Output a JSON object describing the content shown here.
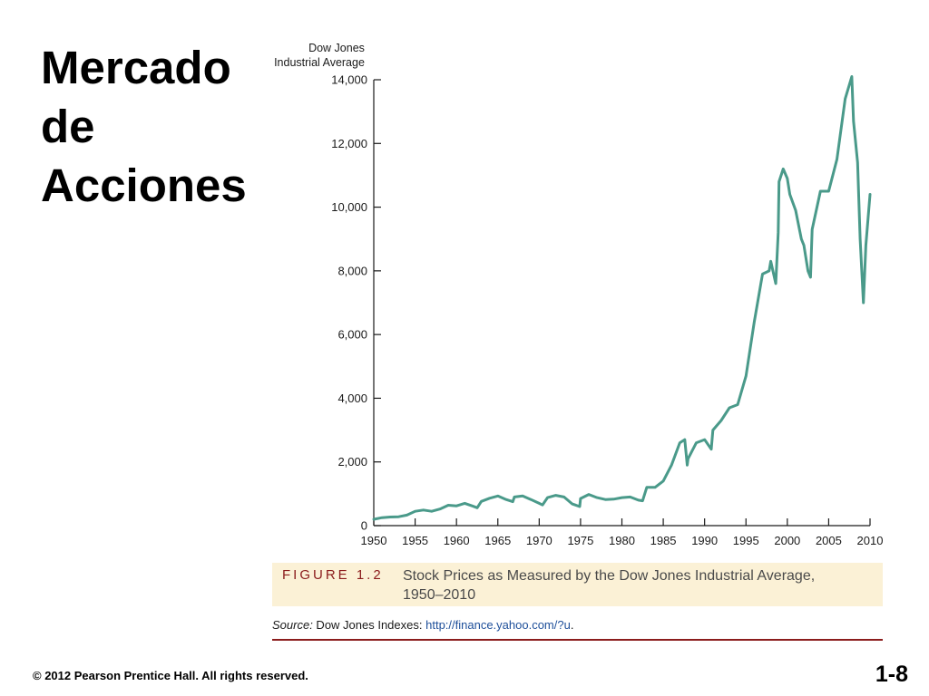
{
  "slide": {
    "title_lines": [
      "Mercado",
      "de",
      "Acciones"
    ],
    "copyright": "© 2012 Pearson Prentice Hall. All rights reserved.",
    "page_number": "1-8"
  },
  "caption": {
    "figure_label": "FIGURE 1.2",
    "text": "Stock Prices as Measured by the Dow Jones Industrial Average, 1950–2010"
  },
  "source": {
    "label": "Source:",
    "text": " Dow Jones Indexes: ",
    "url": "http://finance.yahoo.com/?u",
    "end": "."
  },
  "colors": {
    "line": "#4a9a8a",
    "axis": "#1a1a1a",
    "caption_background": "#fbf1d6",
    "figure_label": "#8b1c1c",
    "link": "#1e4f9a"
  },
  "chart_data": {
    "type": "line",
    "title": "",
    "ylabel": "Dow Jones Industrial Average",
    "xlabel": "",
    "xlim": [
      1950,
      2010
    ],
    "ylim": [
      0,
      14000
    ],
    "xticks": [
      1950,
      1955,
      1960,
      1965,
      1970,
      1975,
      1980,
      1985,
      1990,
      1995,
      2000,
      2005,
      2010
    ],
    "xtick_labels": [
      "1950",
      "1955",
      "1960",
      "1965",
      "1970",
      "1975",
      "1980",
      "1985",
      "1990",
      "1995",
      "2000",
      "2005",
      "2010"
    ],
    "yticks": [
      0,
      2000,
      4000,
      6000,
      8000,
      10000,
      12000,
      14000
    ],
    "ytick_labels": [
      "0",
      "2,000",
      "4,000",
      "6,000",
      "8,000",
      "10,000",
      "12,000",
      "14,000"
    ],
    "grid": false,
    "legend": "none",
    "series": [
      {
        "x": [
          1950,
          1951,
          1952,
          1953,
          1954,
          1955,
          1956,
          1957,
          1958,
          1959,
          1960,
          1961,
          1962,
          1962.5,
          1963,
          1964,
          1965,
          1966,
          1966.8,
          1967,
          1968,
          1969,
          1970,
          1970.4,
          1971,
          1972,
          1973,
          1974,
          1974.9,
          1975,
          1976,
          1977,
          1978,
          1979,
          1980,
          1981,
          1982,
          1982.5,
          1983,
          1984,
          1985,
          1986,
          1987,
          1987.6,
          1987.9,
          1988,
          1989,
          1990,
          1990.8,
          1991,
          1992,
          1993,
          1994,
          1995,
          1996,
          1997,
          1997.8,
          1998,
          1998.6,
          1998.9,
          1999,
          1999.5,
          2000,
          2000.3,
          2001,
          2001.7,
          2002,
          2002.5,
          2002.8,
          2003,
          2004,
          2005,
          2006,
          2007,
          2007.8,
          2008,
          2008.5,
          2008.8,
          2009,
          2009.2,
          2009.5,
          2010
        ],
        "y": [
          200,
          250,
          270,
          280,
          330,
          450,
          490,
          450,
          520,
          640,
          620,
          700,
          610,
          560,
          760,
          860,
          930,
          820,
          750,
          900,
          930,
          820,
          700,
          650,
          880,
          950,
          900,
          680,
          600,
          850,
          980,
          880,
          820,
          830,
          880,
          900,
          800,
          780,
          1200,
          1200,
          1400,
          1900,
          2600,
          2700,
          1900,
          2100,
          2600,
          2700,
          2400,
          3000,
          3300,
          3700,
          3800,
          4700,
          6400,
          7900,
          8000,
          8300,
          7600,
          9200,
          10800,
          11200,
          10900,
          10400,
          9900,
          9000,
          8800,
          8000,
          7800,
          9300,
          10500,
          10500,
          11500,
          13400,
          14100,
          12700,
          11400,
          9000,
          8000,
          7000,
          8800,
          10400
        ]
      }
    ]
  }
}
